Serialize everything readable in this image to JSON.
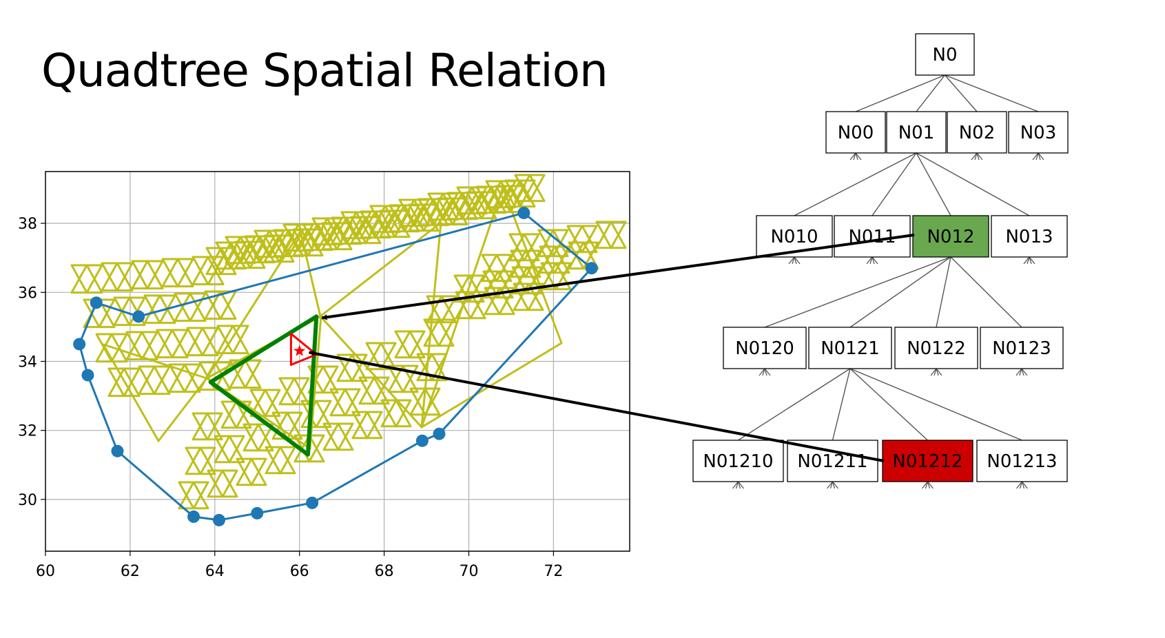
{
  "title": "Quadtree Spatial Relation",
  "colors": {
    "mesh": "#bfbf1a",
    "track": "#1f77b4",
    "parent_cell": "#008000",
    "query_cell": "#ff0000",
    "arrow": "#000000",
    "highlight_parent": "#6aa84f",
    "highlight_query": "#cc0000",
    "tree_edge": "#555555",
    "grid": "#b0b0b0"
  },
  "chart_data": {
    "type": "line",
    "xlim": [
      60,
      73.8
    ],
    "ylim": [
      28.5,
      39.5
    ],
    "x_ticks": [
      "60",
      "62",
      "64",
      "66",
      "68",
      "70",
      "72"
    ],
    "y_ticks": [
      "30",
      "32",
      "34",
      "36",
      "38"
    ],
    "grid": true,
    "series": [
      {
        "marker": "circle",
        "x": [
          71.3,
          72.9,
          69.3,
          68.9,
          66.3,
          65.0,
          64.1,
          63.5,
          61.7,
          61.0,
          60.8,
          61.2,
          62.2,
          71.3
        ],
        "y": [
          38.3,
          36.7,
          31.9,
          31.7,
          29.9,
          29.6,
          29.4,
          29.5,
          31.4,
          33.6,
          34.5,
          35.7,
          35.3,
          38.3
        ]
      }
    ],
    "parent_triangle": [
      [
        66.4,
        35.3
      ],
      [
        63.9,
        33.4
      ],
      [
        66.2,
        31.3
      ]
    ],
    "query_triangle": [
      [
        65.8,
        34.8
      ],
      [
        66.4,
        34.2
      ],
      [
        65.8,
        33.9
      ]
    ],
    "query_point": [
      66.0,
      34.3
    ]
  },
  "tree": {
    "levels": [
      {
        "nodes": [
          "N0"
        ]
      },
      {
        "nodes": [
          "N00",
          "N01",
          "N02",
          "N03"
        ]
      },
      {
        "nodes": [
          "N010",
          "N011",
          "N012",
          "N013"
        ]
      },
      {
        "nodes": [
          "N0120",
          "N0121",
          "N0122",
          "N0123"
        ]
      },
      {
        "nodes": [
          "N01210",
          "N01211",
          "N01212",
          "N01213"
        ]
      }
    ],
    "highlighted": {
      "parent": "N012",
      "query": "N01212"
    }
  }
}
